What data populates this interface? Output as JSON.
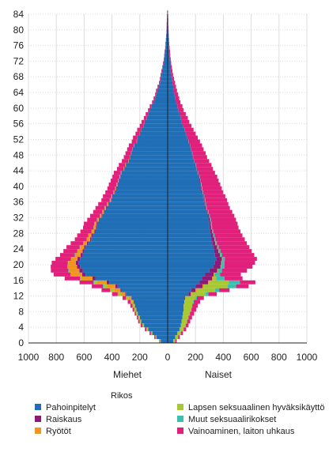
{
  "chart_data": {
    "type": "bar",
    "orientation": "horizontal",
    "layout": "population-pyramid",
    "x_left_label": "Miehet",
    "x_right_label": "Naiset",
    "xlim": [
      -1000,
      1000
    ],
    "x_ticks": [
      -1000,
      -800,
      -600,
      -400,
      -200,
      0,
      200,
      400,
      600,
      800,
      1000
    ],
    "x_tick_labels": [
      "1000",
      "800",
      "600",
      "400",
      "200",
      "0",
      "200",
      "400",
      "600",
      "800",
      "1000"
    ],
    "ylim": [
      0,
      84
    ],
    "y_ticks": [
      0,
      4,
      8,
      12,
      16,
      20,
      24,
      28,
      32,
      36,
      40,
      44,
      48,
      52,
      56,
      60,
      64,
      68,
      72,
      76,
      80,
      84
    ],
    "grid": true,
    "legend_title": "Rikos",
    "legend_position": "bottom",
    "categories_age": [
      0,
      1,
      2,
      3,
      4,
      5,
      6,
      7,
      8,
      9,
      10,
      11,
      12,
      13,
      14,
      15,
      16,
      17,
      18,
      19,
      20,
      21,
      22,
      23,
      24,
      25,
      26,
      27,
      28,
      29,
      30,
      31,
      32,
      33,
      34,
      35,
      36,
      37,
      38,
      39,
      40,
      41,
      42,
      43,
      44,
      45,
      46,
      47,
      48,
      49,
      50,
      51,
      52,
      53,
      54,
      55,
      56,
      57,
      58,
      59,
      60,
      61,
      62,
      63,
      64,
      65,
      66,
      67,
      68,
      69,
      70,
      71,
      72,
      73,
      74,
      75,
      76,
      77,
      78,
      79,
      80,
      81,
      82,
      83,
      84
    ],
    "series": [
      {
        "name": "Pahoinpitelyt",
        "color": "#1f6eb6",
        "men": [
          50,
          80,
          110,
          140,
          170,
          190,
          200,
          215,
          225,
          235,
          245,
          260,
          300,
          330,
          360,
          420,
          520,
          590,
          610,
          630,
          640,
          630,
          610,
          600,
          590,
          570,
          550,
          540,
          520,
          510,
          505,
          490,
          470,
          455,
          440,
          425,
          405,
          395,
          380,
          370,
          360,
          350,
          340,
          330,
          310,
          300,
          280,
          270,
          260,
          250,
          240,
          220,
          215,
          200,
          190,
          175,
          165,
          150,
          140,
          125,
          115,
          100,
          90,
          80,
          75,
          65,
          55,
          50,
          45,
          40,
          35,
          30,
          25,
          22,
          20,
          16,
          14,
          12,
          10,
          8,
          7,
          6,
          5,
          4,
          3
        ],
        "women": [
          40,
          55,
          70,
          85,
          95,
          100,
          105,
          110,
          115,
          115,
          120,
          120,
          150,
          170,
          200,
          230,
          250,
          270,
          300,
          330,
          340,
          350,
          340,
          335,
          330,
          320,
          315,
          310,
          305,
          300,
          300,
          295,
          290,
          280,
          270,
          265,
          260,
          255,
          245,
          240,
          235,
          230,
          225,
          215,
          205,
          200,
          190,
          180,
          175,
          165,
          160,
          150,
          140,
          130,
          120,
          110,
          100,
          95,
          85,
          75,
          70,
          60,
          55,
          50,
          45,
          40,
          35,
          30,
          25,
          22,
          20,
          17,
          15,
          13,
          12,
          10,
          8,
          7,
          6,
          5,
          4,
          3,
          3,
          2,
          2
        ]
      },
      {
        "name": "Raiskaus",
        "color": "#8e1a78",
        "men": [
          0,
          0,
          0,
          0,
          0,
          0,
          0,
          0,
          0,
          0,
          0,
          2,
          5,
          10,
          15,
          18,
          20,
          25,
          25,
          22,
          20,
          18,
          15,
          12,
          10,
          10,
          8,
          8,
          7,
          6,
          6,
          5,
          5,
          4,
          4,
          3,
          3,
          3,
          3,
          2,
          2,
          2,
          2,
          2,
          2,
          1,
          1,
          1,
          1,
          1,
          1,
          1,
          1,
          0,
          0,
          0,
          0,
          0,
          0,
          0,
          0,
          0,
          0,
          0,
          0,
          0,
          0,
          0,
          0,
          0,
          0,
          0,
          0,
          0,
          0,
          0,
          0,
          0,
          0,
          0,
          0,
          0,
          0,
          0,
          0
        ],
        "women": [
          0,
          0,
          0,
          0,
          0,
          0,
          0,
          0,
          0,
          0,
          0,
          5,
          15,
          30,
          50,
          60,
          70,
          60,
          55,
          50,
          45,
          40,
          35,
          30,
          25,
          22,
          20,
          18,
          15,
          12,
          10,
          10,
          8,
          8,
          7,
          6,
          6,
          5,
          5,
          5,
          4,
          4,
          4,
          3,
          3,
          3,
          2,
          2,
          2,
          2,
          1,
          1,
          1,
          1,
          1,
          1,
          0,
          0,
          0,
          0,
          0,
          0,
          0,
          0,
          0,
          0,
          0,
          0,
          0,
          0,
          0,
          0,
          0,
          0,
          0,
          0,
          0,
          0,
          0,
          0,
          0,
          0,
          0,
          0,
          0
        ]
      },
      {
        "name": "Ryötöt",
        "color": "#f0961e",
        "men": [
          0,
          0,
          0,
          0,
          0,
          0,
          0,
          2,
          5,
          8,
          10,
          20,
          30,
          45,
          60,
          70,
          80,
          80,
          75,
          65,
          55,
          45,
          40,
          35,
          30,
          25,
          22,
          20,
          18,
          15,
          14,
          12,
          11,
          10,
          9,
          8,
          7,
          6,
          6,
          5,
          5,
          4,
          4,
          4,
          3,
          3,
          3,
          2,
          2,
          2,
          2,
          2,
          1,
          1,
          1,
          1,
          1,
          1,
          0,
          0,
          0,
          0,
          0,
          0,
          0,
          0,
          0,
          0,
          0,
          0,
          0,
          0,
          0,
          0,
          0,
          0,
          0,
          0,
          0,
          0,
          0,
          0,
          0,
          0,
          0
        ],
        "women": [
          0,
          0,
          0,
          0,
          0,
          0,
          0,
          0,
          1,
          2,
          3,
          5,
          8,
          10,
          12,
          10,
          8,
          6,
          5,
          4,
          3,
          3,
          2,
          2,
          2,
          2,
          1,
          1,
          1,
          1,
          1,
          1,
          1,
          1,
          1,
          1,
          1,
          1,
          1,
          1,
          1,
          0,
          0,
          0,
          0,
          0,
          0,
          0,
          0,
          0,
          0,
          0,
          0,
          0,
          0,
          0,
          0,
          0,
          0,
          0,
          0,
          0,
          0,
          0,
          0,
          0,
          0,
          0,
          0,
          0,
          0,
          0,
          0,
          0,
          0,
          0,
          0,
          0,
          0,
          0,
          0,
          0,
          0,
          0,
          0
        ]
      },
      {
        "name": "Lapsen seksuaalinen hyväksikäyttö",
        "color": "#a6c832",
        "men": [
          5,
          8,
          10,
          12,
          12,
          12,
          12,
          10,
          10,
          10,
          10,
          15,
          20,
          25,
          25,
          20,
          5,
          0,
          0,
          0,
          0,
          0,
          0,
          0,
          0,
          0,
          0,
          0,
          0,
          0,
          0,
          0,
          0,
          0,
          0,
          0,
          0,
          0,
          0,
          0,
          0,
          0,
          0,
          0,
          0,
          0,
          0,
          0,
          0,
          0,
          0,
          0,
          0,
          0,
          0,
          0,
          0,
          0,
          0,
          0,
          0,
          0,
          0,
          0,
          0,
          0,
          0,
          0,
          0,
          0,
          0,
          0,
          0,
          0,
          0,
          0,
          0,
          0,
          0,
          0,
          0,
          0,
          0,
          0,
          0
        ],
        "women": [
          15,
          20,
          25,
          30,
          35,
          40,
          45,
          50,
          55,
          60,
          60,
          70,
          100,
          130,
          170,
          140,
          20,
          0,
          0,
          0,
          0,
          0,
          0,
          0,
          0,
          0,
          0,
          0,
          0,
          0,
          0,
          0,
          0,
          0,
          0,
          0,
          0,
          0,
          0,
          0,
          0,
          0,
          0,
          0,
          0,
          0,
          0,
          0,
          0,
          0,
          0,
          0,
          0,
          0,
          0,
          0,
          0,
          0,
          0,
          0,
          0,
          0,
          0,
          0,
          0,
          0,
          0,
          0,
          0,
          0,
          0,
          0,
          0,
          0,
          0,
          0,
          0,
          0,
          0,
          0,
          0,
          0,
          0,
          0,
          0
        ]
      },
      {
        "name": "Muut seksuaalirikokset",
        "color": "#3cbfae",
        "men": [
          0,
          0,
          0,
          0,
          0,
          0,
          0,
          0,
          0,
          0,
          2,
          2,
          4,
          5,
          5,
          5,
          5,
          4,
          4,
          3,
          3,
          3,
          3,
          2,
          2,
          2,
          2,
          2,
          2,
          2,
          2,
          1,
          1,
          1,
          1,
          1,
          1,
          1,
          1,
          1,
          1,
          1,
          1,
          1,
          1,
          1,
          0,
          0,
          0,
          0,
          0,
          0,
          0,
          0,
          0,
          0,
          0,
          0,
          0,
          0,
          0,
          0,
          0,
          0,
          0,
          0,
          0,
          0,
          0,
          0,
          0,
          0,
          0,
          0,
          0,
          0,
          0,
          0,
          0,
          0,
          0,
          0,
          0,
          0,
          0
        ],
        "women": [
          0,
          0,
          0,
          0,
          0,
          0,
          0,
          0,
          0,
          0,
          5,
          10,
          20,
          30,
          60,
          80,
          60,
          40,
          30,
          25,
          20,
          18,
          15,
          12,
          10,
          10,
          8,
          8,
          7,
          6,
          6,
          5,
          5,
          5,
          4,
          4,
          4,
          3,
          3,
          3,
          3,
          2,
          2,
          2,
          2,
          2,
          1,
          1,
          1,
          1,
          1,
          1,
          0,
          0,
          0,
          0,
          0,
          0,
          0,
          0,
          0,
          0,
          0,
          0,
          0,
          0,
          0,
          0,
          0,
          0,
          0,
          0,
          0,
          0,
          0,
          0,
          0,
          0,
          0,
          0,
          0,
          0,
          0,
          0,
          0
        ]
      },
      {
        "name": "Vainoaminen, laiton uhkaus",
        "color": "#e0207a",
        "men": [
          5,
          8,
          10,
          12,
          12,
          10,
          10,
          10,
          12,
          15,
          20,
          25,
          40,
          60,
          80,
          100,
          110,
          120,
          125,
          120,
          115,
          110,
          105,
          100,
          95,
          90,
          85,
          80,
          80,
          75,
          75,
          70,
          70,
          65,
          65,
          62,
          60,
          60,
          58,
          55,
          55,
          52,
          50,
          50,
          48,
          46,
          45,
          42,
          40,
          38,
          36,
          35,
          32,
          30,
          28,
          25,
          22,
          20,
          18,
          16,
          14,
          12,
          11,
          10,
          9,
          8,
          7,
          6,
          6,
          5,
          4,
          4,
          3,
          3,
          2,
          2,
          2,
          1,
          1,
          1,
          1,
          1,
          1,
          1,
          1
        ],
        "women": [
          10,
          12,
          15,
          18,
          20,
          22,
          25,
          30,
          35,
          40,
          45,
          50,
          60,
          75,
          90,
          110,
          130,
          150,
          180,
          200,
          220,
          230,
          230,
          225,
          220,
          215,
          210,
          200,
          195,
          190,
          185,
          180,
          175,
          170,
          165,
          160,
          155,
          150,
          145,
          140,
          135,
          130,
          125,
          120,
          115,
          110,
          105,
          100,
          95,
          90,
          85,
          80,
          75,
          70,
          65,
          60,
          55,
          50,
          45,
          40,
          36,
          32,
          28,
          25,
          22,
          20,
          18,
          16,
          14,
          12,
          10,
          8,
          7,
          6,
          5,
          4,
          3,
          3,
          2,
          2,
          2,
          1,
          1,
          1,
          1
        ]
      }
    ]
  }
}
